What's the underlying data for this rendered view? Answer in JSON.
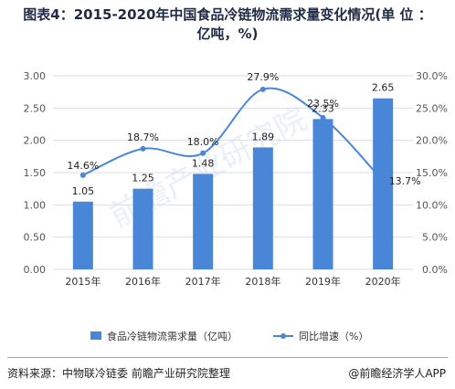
{
  "title": {
    "line1": "图表4：2015-2020年中国食品冷链物流需求量变化情况(单 位 ：",
    "line2": "亿吨，%)"
  },
  "source": "资料来源：中物联冷链委 前瞻产业研究院整理",
  "credit": "@前瞻经济学人APP",
  "watermark": "前瞻产业研究院",
  "colors": {
    "bar": "#4a86d8",
    "line": "#4a86d8",
    "grid": "#d9dde3",
    "axis_text": "#555555"
  },
  "chart_data": {
    "type": "bar+line",
    "categories": [
      "2015年",
      "2016年",
      "2017年",
      "2018年",
      "2019年",
      "2020年"
    ],
    "series": [
      {
        "name": "食品冷链物流需求量（亿吨）",
        "type": "bar",
        "axis": "left",
        "values": [
          1.05,
          1.25,
          1.48,
          1.89,
          2.33,
          2.65
        ],
        "labels": [
          "1.05",
          "1.25",
          "1.48",
          "1.89",
          "2.33",
          "2.65"
        ]
      },
      {
        "name": "同比增速（%）",
        "type": "line",
        "axis": "right",
        "values": [
          14.6,
          18.7,
          18.0,
          27.9,
          23.5,
          13.7
        ],
        "labels": [
          "14.6%",
          "18.7%",
          "18.0%",
          "27.9%",
          "23.5%",
          "13.7%"
        ]
      }
    ],
    "y_left": {
      "min": 0,
      "max": 3,
      "ticks": [
        "0.00",
        "0.50",
        "1.00",
        "1.50",
        "2.00",
        "2.50",
        "3.00"
      ]
    },
    "y_right": {
      "min": 0,
      "max": 30,
      "ticks": [
        "0.0%",
        "5.0%",
        "10.0%",
        "15.0%",
        "20.0%",
        "25.0%",
        "30.0%"
      ]
    },
    "grid": true,
    "legend": "bottom"
  }
}
